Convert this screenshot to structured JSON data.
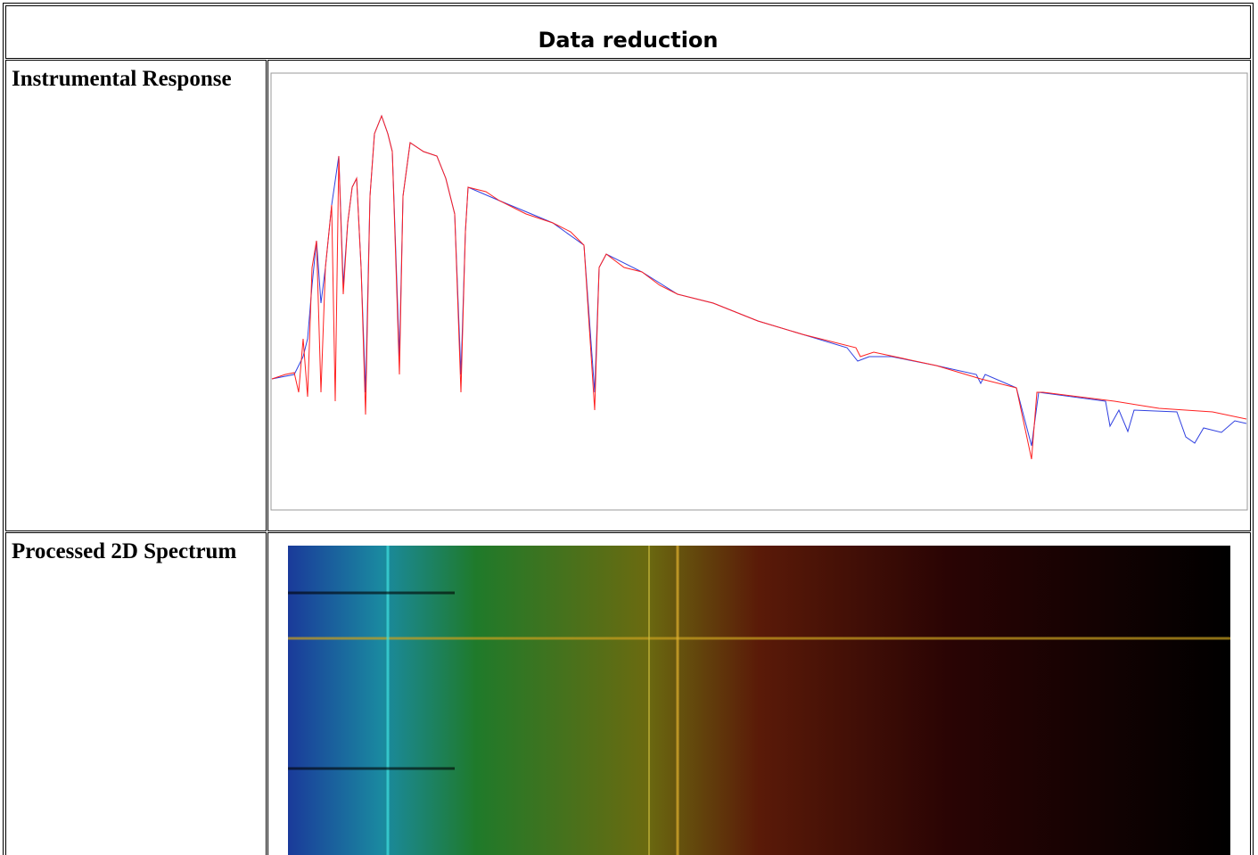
{
  "header": {
    "title": "Data reduction"
  },
  "rows": [
    {
      "label": "Instrumental Response"
    },
    {
      "label": "Processed 2D Spectrum"
    }
  ]
}
